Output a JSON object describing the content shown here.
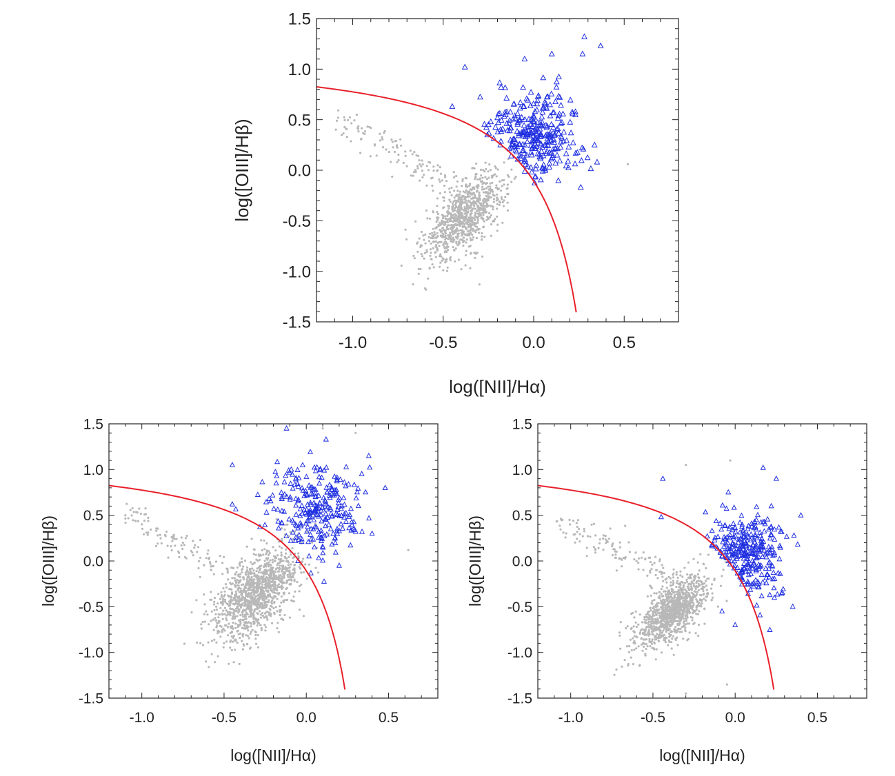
{
  "chart_data": [
    {
      "type": "scatter",
      "panel": "top",
      "xlabel": "log([NII]/Hα)",
      "ylabel": "log([OIII]/Hβ)",
      "xlim": [
        -1.2,
        0.8
      ],
      "ylim": [
        -1.5,
        1.5
      ],
      "xticks": [
        -1.0,
        -0.5,
        0.0,
        0.5
      ],
      "xtick_labels": [
        "-1.0",
        "-0.5",
        "0.0",
        "0.5"
      ],
      "yticks": [
        -1.5,
        -1.0,
        -0.5,
        0.0,
        0.5,
        1.0,
        1.5
      ],
      "ytick_labels": [
        "-1.5",
        "-1.0",
        "-0.5",
        "0.0",
        "0.5",
        "1.0",
        "1.5"
      ],
      "grid": false,
      "series": [
        {
          "marker": "dot",
          "color": "#b8b8b8",
          "cluster_center": [
            -0.38,
            -0.45
          ],
          "cluster_spread": [
            0.11,
            0.22
          ],
          "count": 900,
          "points": [
            [
              -1.08,
              0.52
            ],
            [
              -0.97,
              0.41
            ],
            [
              -0.85,
              0.36
            ],
            [
              -0.78,
              0.28
            ],
            [
              -0.66,
              0.18
            ],
            [
              -0.58,
              0.08
            ],
            [
              -0.49,
              -0.05
            ],
            [
              0.52,
              0.06
            ],
            [
              -0.3,
              -1.13
            ],
            [
              -0.4,
              -0.98
            ],
            [
              -0.52,
              -0.85
            ]
          ]
        },
        {
          "marker": "triangle",
          "color": "#1f2fe0",
          "cluster_center": [
            0.0,
            0.35
          ],
          "cluster_spread": [
            0.13,
            0.22
          ],
          "count": 300,
          "points": [
            [
              -0.38,
              1.02
            ],
            [
              -0.45,
              0.63
            ],
            [
              -0.05,
              1.1
            ],
            [
              0.1,
              1.15
            ],
            [
              0.28,
              1.32
            ],
            [
              0.37,
              1.23
            ],
            [
              0.27,
              1.15
            ],
            [
              0.35,
              0.08
            ],
            [
              0.26,
              -0.17
            ],
            [
              0.05,
              -0.01
            ],
            [
              -0.25,
              0.45
            ],
            [
              -0.18,
              0.82
            ]
          ]
        }
      ],
      "boundary_curve": {
        "color": "#e8202a",
        "equation": "y = 0.61/(x - 0.47) + 1.19",
        "x_range": [
          -1.2,
          0.235
        ]
      }
    },
    {
      "type": "scatter",
      "panel": "bottom-left",
      "xlabel": "log([NII]/Hα)",
      "ylabel": "log([OIII]/Hβ)",
      "xlim": [
        -1.2,
        0.8
      ],
      "ylim": [
        -1.5,
        1.5
      ],
      "xticks": [
        -1.0,
        -0.5,
        0.0,
        0.5
      ],
      "xtick_labels": [
        "-1.0",
        "-0.5",
        "0.0",
        "0.5"
      ],
      "yticks": [
        -1.5,
        -1.0,
        -0.5,
        0.0,
        0.5,
        1.0,
        1.5
      ],
      "ytick_labels": [
        "-1.5",
        "-1.0",
        "-0.5",
        "0.0",
        "0.5",
        "1.0",
        "1.5"
      ],
      "grid": false,
      "series": [
        {
          "marker": "dot",
          "color": "#b8b8b8",
          "cluster_center": [
            -0.3,
            -0.35
          ],
          "cluster_spread": [
            0.13,
            0.28
          ],
          "count": 1200,
          "points": [
            [
              -1.1,
              0.5
            ],
            [
              -1.0,
              0.4
            ],
            [
              -0.85,
              0.32
            ],
            [
              -0.75,
              0.2
            ],
            [
              -0.6,
              0.08
            ],
            [
              -0.61,
              -1.1
            ],
            [
              -0.5,
              -0.9
            ],
            [
              0.62,
              0.12
            ],
            [
              0.3,
              1.4
            ],
            [
              0.1,
              1.45
            ]
          ]
        },
        {
          "marker": "triangle",
          "color": "#1f2fe0",
          "cluster_center": [
            0.05,
            0.55
          ],
          "cluster_spread": [
            0.14,
            0.25
          ],
          "count": 270,
          "points": [
            [
              -0.45,
              1.05
            ],
            [
              -0.45,
              0.62
            ],
            [
              -0.12,
              1.45
            ],
            [
              0.12,
              1.33
            ],
            [
              0.38,
              1.15
            ],
            [
              0.48,
              0.8
            ],
            [
              0.4,
              0.3
            ],
            [
              0.2,
              -0.05
            ],
            [
              -0.05,
              0.0
            ]
          ]
        }
      ],
      "boundary_curve": {
        "color": "#e8202a",
        "equation": "y = 0.61/(x - 0.47) + 1.19",
        "x_range": [
          -1.2,
          0.235
        ]
      }
    },
    {
      "type": "scatter",
      "panel": "bottom-right",
      "xlabel": "log([NII]/Hα)",
      "ylabel": "log([OIII]/Hβ)",
      "xlim": [
        -1.2,
        0.8
      ],
      "ylim": [
        -1.5,
        1.5
      ],
      "xticks": [
        -1.0,
        -0.5,
        0.0,
        0.5
      ],
      "xtick_labels": [
        "-1.0",
        "-0.5",
        "0.0",
        "0.5"
      ],
      "yticks": [
        -1.5,
        -1.0,
        -0.5,
        0.0,
        0.5,
        1.0,
        1.5
      ],
      "ytick_labels": [
        "-1.5",
        "-1.0",
        "-0.5",
        "0.0",
        "0.5",
        "1.0",
        "1.5"
      ],
      "grid": false,
      "series": [
        {
          "marker": "dot",
          "color": "#b8b8b8",
          "cluster_center": [
            -0.38,
            -0.55
          ],
          "cluster_spread": [
            0.11,
            0.2
          ],
          "count": 1100,
          "points": [
            [
              -1.05,
              0.45
            ],
            [
              -0.95,
              0.35
            ],
            [
              -0.8,
              0.28
            ],
            [
              -0.7,
              0.15
            ],
            [
              -0.6,
              0.0
            ],
            [
              -0.48,
              -0.1
            ],
            [
              -0.3,
              1.05
            ],
            [
              -0.03,
              1.1
            ],
            [
              -0.05,
              -1.35
            ],
            [
              -0.3,
              -1.45
            ]
          ]
        },
        {
          "marker": "triangle",
          "color": "#1f2fe0",
          "cluster_center": [
            0.05,
            0.05
          ],
          "cluster_spread": [
            0.13,
            0.22
          ],
          "count": 300,
          "points": [
            [
              -0.44,
              0.9
            ],
            [
              -0.45,
              0.48
            ],
            [
              0.17,
              1.02
            ],
            [
              0.25,
              0.9
            ],
            [
              0.38,
              0.18
            ],
            [
              0.35,
              -0.5
            ],
            [
              0.0,
              -0.7
            ],
            [
              -0.08,
              -0.55
            ],
            [
              0.22,
              0.6
            ]
          ]
        }
      ],
      "boundary_curve": {
        "color": "#e8202a",
        "equation": "y = 0.61/(x - 0.47) + 1.19",
        "x_range": [
          -1.2,
          0.235
        ]
      }
    }
  ]
}
